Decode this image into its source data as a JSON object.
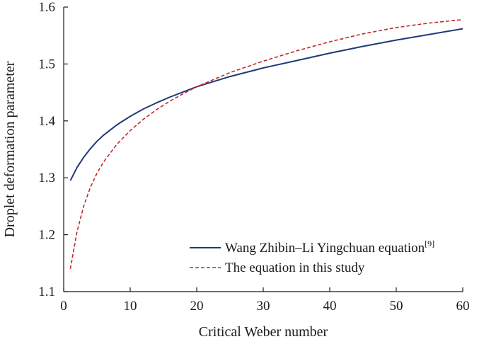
{
  "chart_data": {
    "type": "line",
    "xlabel": "Critical Weber number",
    "ylabel": "Droplet deformation parameter",
    "xlim": [
      0,
      60
    ],
    "ylim": [
      1.1,
      1.6
    ],
    "xticks": [
      "0",
      "10",
      "20",
      "30",
      "40",
      "50",
      "60"
    ],
    "yticks": [
      "1.1",
      "1.2",
      "1.3",
      "1.4",
      "1.5",
      "1.6"
    ],
    "grid": false,
    "legend_position": "bottom-right",
    "x": [
      1,
      2,
      3,
      4,
      5,
      6,
      8,
      10,
      12,
      14,
      16,
      18,
      20,
      25,
      30,
      35,
      40,
      45,
      50,
      55,
      60
    ],
    "series": [
      {
        "name": "Wang Zhibin–Li Yingchuan equation",
        "ref": "[9]",
        "color": "#1f3a7a",
        "style": "solid",
        "values": [
          1.295,
          1.318,
          1.336,
          1.351,
          1.364,
          1.375,
          1.393,
          1.408,
          1.421,
          1.432,
          1.442,
          1.451,
          1.46,
          1.478,
          1.493,
          1.506,
          1.519,
          1.531,
          1.542,
          1.552,
          1.562
        ]
      },
      {
        "name": "The equation in this study",
        "color": "#c0282d",
        "style": "dashed",
        "values": [
          1.14,
          1.205,
          1.25,
          1.283,
          1.308,
          1.328,
          1.359,
          1.383,
          1.403,
          1.42,
          1.435,
          1.448,
          1.46,
          1.485,
          1.505,
          1.523,
          1.539,
          1.553,
          1.564,
          1.572,
          1.578
        ]
      }
    ]
  }
}
